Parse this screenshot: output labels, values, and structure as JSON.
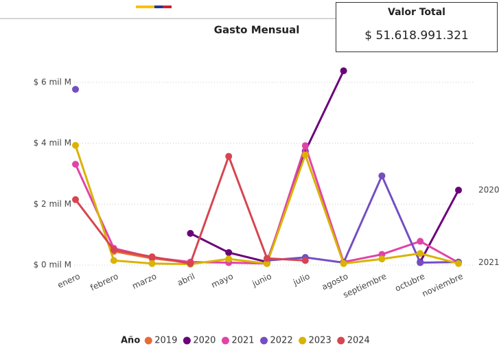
{
  "card": {
    "title": "Valor Total",
    "value": "$ 51.618.991.321"
  },
  "chart_data": {
    "type": "line",
    "title": "Gasto Mensual",
    "categories": [
      "enero",
      "febrero",
      "marzo",
      "abril",
      "mayo",
      "junio",
      "julio",
      "agosto",
      "septiembre",
      "octubre",
      "noviembre"
    ],
    "series": [
      {
        "name": "2019",
        "color": "#E66C37",
        "values": [
          null,
          0.45,
          0.22,
          0.08,
          null,
          null,
          null,
          null,
          null,
          null,
          null
        ]
      },
      {
        "name": "2020",
        "color": "#6B007B",
        "values": [
          null,
          null,
          null,
          1.04,
          0.41,
          0.1,
          3.74,
          6.38,
          null,
          0.1,
          2.46
        ]
      },
      {
        "name": "2021",
        "color": "#E044A7",
        "values": [
          3.31,
          0.55,
          0.25,
          0.1,
          0.08,
          0.05,
          3.92,
          0.1,
          0.35,
          0.78,
          0.08
        ]
      },
      {
        "name": "2022",
        "color": "#744EC2",
        "values": [
          5.77,
          null,
          null,
          null,
          null,
          0.15,
          0.25,
          0.08,
          2.93,
          0.08,
          0.1
        ]
      },
      {
        "name": "2023",
        "color": "#D9B300",
        "values": [
          3.93,
          0.15,
          0.05,
          0.03,
          0.2,
          0.05,
          3.62,
          0.05,
          0.2,
          0.38,
          0.05
        ]
      },
      {
        "name": "2024",
        "color": "#D64550",
        "values": [
          2.15,
          0.5,
          0.27,
          0.05,
          3.57,
          0.22,
          0.15,
          null,
          null,
          null,
          null
        ]
      }
    ],
    "ylim": [
      0,
      7
    ],
    "yticks": [
      {
        "value": 0,
        "label": "$ 0 mil M"
      },
      {
        "value": 2,
        "label": "$ 2 mil M"
      },
      {
        "value": 4,
        "label": "$ 4 mil M"
      },
      {
        "value": 6,
        "label": "$ 6 mil M"
      }
    ],
    "grid": true,
    "legend_title": "Año",
    "annotations": [
      "2020",
      "2021"
    ]
  }
}
